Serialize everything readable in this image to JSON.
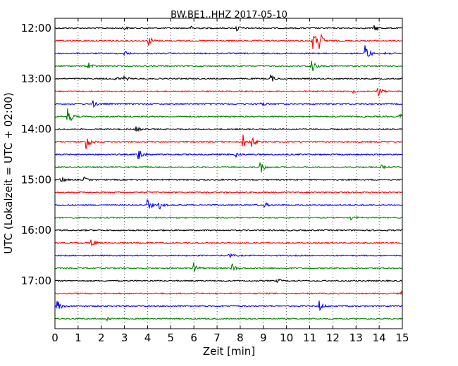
{
  "chart_data": {
    "type": "line",
    "title": "BW.BE1..HHZ 2017-05-10",
    "xlabel": "Zeit  [min]",
    "ylabel": "UTC (Lokalzeit = UTC + 02:00)",
    "xlim": [
      0,
      15
    ],
    "x_ticks": [
      "0",
      "1",
      "2",
      "3",
      "4",
      "5",
      "6",
      "7",
      "8",
      "9",
      "10",
      "11",
      "12",
      "13",
      "14",
      "15"
    ],
    "y_ticks": [
      "12:00",
      "13:00",
      "14:00",
      "15:00",
      "16:00",
      "17:00"
    ],
    "grid": "vertical dotted at each minute",
    "colors": [
      "#000000",
      "#ff0000",
      "#0000ff",
      "#008000"
    ],
    "traces": [
      {
        "start": "12:00",
        "events": [
          [
            2.95,
            3
          ],
          [
            5.9,
            3
          ],
          [
            7.85,
            5
          ],
          [
            13.8,
            5
          ]
        ]
      },
      {
        "start": "12:15",
        "events": [
          [
            4.05,
            8
          ],
          [
            11.1,
            22
          ],
          [
            11.4,
            18
          ]
        ]
      },
      {
        "start": "12:30",
        "events": [
          [
            3.0,
            4
          ],
          [
            13.4,
            18
          ],
          [
            14.2,
            4
          ]
        ]
      },
      {
        "start": "12:45",
        "events": [
          [
            1.45,
            7
          ],
          [
            11.05,
            16
          ]
        ]
      },
      {
        "start": "13:00",
        "events": [
          [
            2.6,
            4
          ],
          [
            3.0,
            4
          ],
          [
            9.3,
            7
          ]
        ]
      },
      {
        "start": "13:15",
        "events": [
          [
            12.8,
            3
          ],
          [
            13.95,
            8
          ]
        ]
      },
      {
        "start": "13:30",
        "events": [
          [
            1.65,
            5
          ],
          [
            8.9,
            4
          ]
        ]
      },
      {
        "start": "13:45",
        "events": [
          [
            0.55,
            16
          ],
          [
            14.9,
            5
          ]
        ]
      },
      {
        "start": "14:00",
        "events": [
          [
            3.5,
            4
          ]
        ]
      },
      {
        "start": "14:15",
        "events": [
          [
            1.35,
            16
          ],
          [
            8.1,
            12
          ],
          [
            8.5,
            9
          ]
        ]
      },
      {
        "start": "14:30",
        "events": [
          [
            3.6,
            15
          ],
          [
            7.8,
            5
          ]
        ]
      },
      {
        "start": "14:45",
        "events": [
          [
            8.85,
            13
          ],
          [
            14.1,
            3
          ]
        ]
      },
      {
        "start": "15:00",
        "events": [
          [
            0.25,
            6
          ],
          [
            1.25,
            4
          ]
        ]
      },
      {
        "start": "15:15",
        "events": []
      },
      {
        "start": "15:30",
        "events": [
          [
            4.0,
            10
          ],
          [
            4.5,
            6
          ],
          [
            9.05,
            4
          ]
        ]
      },
      {
        "start": "15:45",
        "events": [
          [
            12.8,
            4
          ]
        ]
      },
      {
        "start": "16:00",
        "events": []
      },
      {
        "start": "16:15",
        "events": [
          [
            1.55,
            7
          ]
        ]
      },
      {
        "start": "16:30",
        "events": [
          [
            7.5,
            4
          ]
        ]
      },
      {
        "start": "16:45",
        "events": [
          [
            6.0,
            9
          ],
          [
            7.65,
            7
          ]
        ]
      },
      {
        "start": "17:00",
        "events": [
          [
            9.6,
            3
          ]
        ]
      },
      {
        "start": "17:15",
        "events": [
          [
            14.95,
            4
          ]
        ]
      },
      {
        "start": "17:30",
        "events": [
          [
            0.1,
            9
          ],
          [
            11.4,
            8
          ]
        ]
      },
      {
        "start": "17:45",
        "events": [
          [
            2.25,
            3
          ]
        ]
      }
    ]
  }
}
